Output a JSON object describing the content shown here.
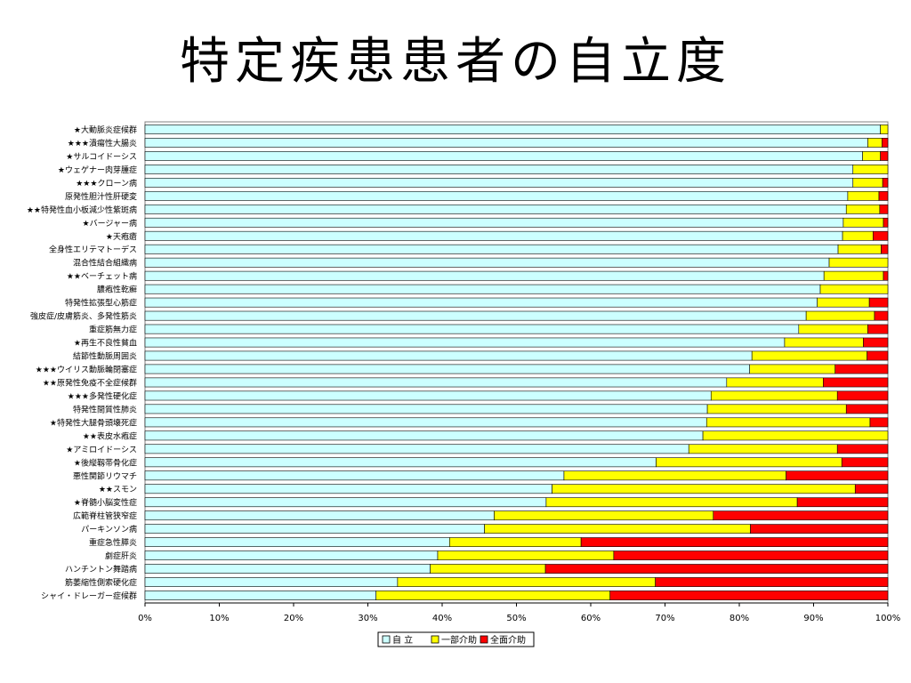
{
  "title": "特定疾患患者の自立度",
  "chart_data": {
    "type": "bar",
    "orientation": "horizontal",
    "stacked": true,
    "percent": true,
    "xlim": [
      0,
      100
    ],
    "xticks": [
      "0%",
      "10%",
      "20%",
      "30%",
      "40%",
      "50%",
      "60%",
      "70%",
      "80%",
      "90%",
      "100%"
    ],
    "grid": false,
    "legend_position": "bottom",
    "categories": [
      "★大動脈炎症候群",
      "★★★潰瘍性大腸炎",
      "★サルコイドーシス",
      "★ウェゲナー肉芽腫症",
      "★★★クローン病",
      "原発性胆汁性肝硬変",
      "★★特発性血小板減少性紫斑病",
      "★バージャー病",
      "★天疱瘡",
      "全身性エリテマトーデス",
      "混合性結合組織病",
      "★★ベーチェット病",
      "膿疱性乾癬",
      "特発性拡張型心筋症",
      "強皮症/皮膚筋炎、多発性筋炎",
      "重症筋無力症",
      "★再生不良性貧血",
      "結節性動脈周囲炎",
      "★★★ウイリス動脈輪閉塞症",
      "★★原発性免疫不全症候群",
      "★★★多発性硬化症",
      "特発性間質性肺炎",
      "★特発性大腿骨頭壊死症",
      "★★表皮水疱症",
      "★アミロイドーシス",
      "★後縦靱帯骨化症",
      "悪性関節リウマチ",
      "★★スモン",
      "★脊髄小脳変性症",
      "広範脊柱管狭窄症",
      "パーキンソン病",
      "重症急性膵炎",
      "劇症肝炎",
      "ハンチントン舞踏病",
      "筋萎縮性側索硬化症",
      "シャイ・ドレーガー症候群"
    ],
    "series": [
      {
        "name": "自 立",
        "color": "#ccffff",
        "values": [
          99,
          97.3,
          96.6,
          95.3,
          95.3,
          94.6,
          94.4,
          94,
          93.9,
          93.3,
          92.1,
          91.4,
          90.9,
          90.5,
          89,
          88,
          86.1,
          81.7,
          81.4,
          78.3,
          76.2,
          75.7,
          75.6,
          75.1,
          73.2,
          68.8,
          56.4,
          54.8,
          54,
          47,
          45.7,
          41,
          39.4,
          38.4,
          34,
          31.1
        ]
      },
      {
        "name": "一部介助",
        "color": "#ffff00",
        "values": [
          1,
          1.9,
          2.4,
          4.7,
          4,
          4.2,
          4.5,
          5.4,
          4.1,
          5.8,
          7.9,
          8,
          9.1,
          7,
          9.2,
          9.3,
          10.6,
          15.5,
          11.5,
          13,
          17,
          18.7,
          22,
          24.9,
          20,
          25,
          29.9,
          40.8,
          33.8,
          29.5,
          35.8,
          17.7,
          23.7,
          15.5,
          34.7,
          31.5
        ]
      },
      {
        "name": "全面介助",
        "color": "#ff0000",
        "values": [
          0,
          0.8,
          1,
          0,
          0.7,
          1.2,
          1.1,
          0.6,
          2,
          0.9,
          0,
          0.6,
          0,
          2.5,
          1.8,
          2.7,
          3.3,
          2.8,
          7.1,
          8.7,
          6.8,
          5.6,
          2.4,
          0,
          6.8,
          6.2,
          13.7,
          4.4,
          12.2,
          23.5,
          18.5,
          41.3,
          36.9,
          46.1,
          31.3,
          37.4
        ]
      }
    ]
  }
}
